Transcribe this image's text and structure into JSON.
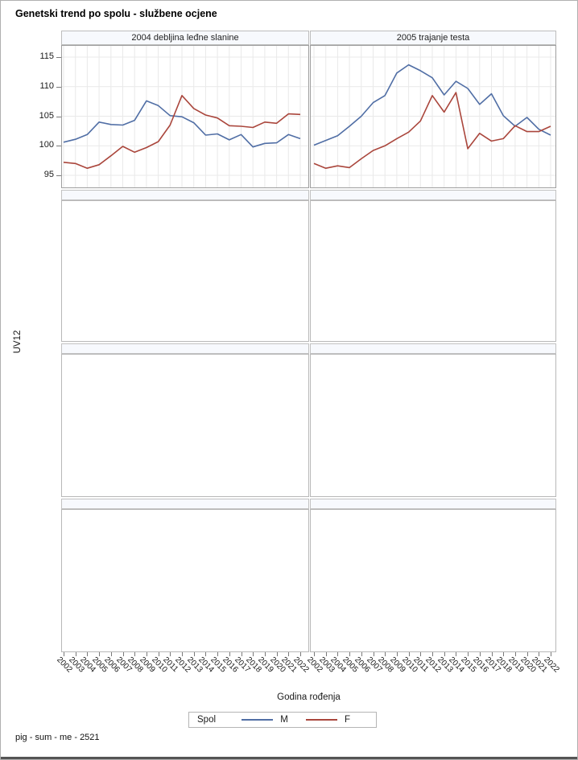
{
  "footnote": "pig - sum - me - 2521",
  "chart_data": {
    "type": "line",
    "title": "Genetski trend po spolu - službene ocjene",
    "xlabel": "Godina rođenja",
    "ylabel": "UV12",
    "x": [
      2002,
      2003,
      2004,
      2005,
      2006,
      2007,
      2008,
      2009,
      2010,
      2011,
      2012,
      2013,
      2014,
      2015,
      2016,
      2017,
      2018,
      2019,
      2020,
      2021,
      2022
    ],
    "yticks": [
      95,
      100,
      105,
      110,
      115
    ],
    "ylim": [
      93.0,
      116.9
    ],
    "grid": true,
    "legend_position": "bottom",
    "legend": {
      "title": "Spol",
      "entries": [
        {
          "label": "M",
          "color": "#506ea5"
        },
        {
          "label": "F",
          "color": "#aa463c"
        }
      ]
    },
    "panels": [
      {
        "header": "2004 debljina leđne slanine",
        "series": [
          {
            "name": "M",
            "values": [
              100.6,
              101.1,
              101.9,
              104.0,
              103.6,
              103.5,
              104.3,
              107.6,
              106.8,
              105.1,
              104.9,
              103.9,
              101.8,
              102.0,
              101.0,
              101.9,
              99.8,
              100.4,
              100.5,
              101.9,
              101.2
            ]
          },
          {
            "name": "F",
            "values": [
              97.2,
              97.0,
              96.2,
              96.8,
              98.3,
              99.9,
              98.9,
              99.7,
              100.7,
              103.5,
              108.5,
              106.3,
              105.2,
              104.7,
              103.4,
              103.3,
              103.1,
              104.0,
              103.8,
              105.4,
              105.3
            ]
          }
        ]
      },
      {
        "header": "2005 trajanje testa",
        "series": [
          {
            "name": "M",
            "values": [
              100.1,
              100.9,
              101.7,
              103.3,
              105.0,
              107.3,
              108.5,
              112.3,
              113.7,
              112.7,
              111.5,
              108.6,
              110.9,
              109.7,
              107.0,
              108.8,
              105.1,
              103.3,
              104.8,
              102.8,
              101.8
            ]
          },
          {
            "name": "F",
            "values": [
              97.0,
              96.2,
              96.6,
              96.3,
              97.8,
              99.2,
              100.0,
              101.2,
              102.3,
              104.2,
              108.5,
              105.7,
              109.0,
              99.5,
              102.1,
              100.8,
              101.2,
              103.4,
              102.4,
              102.4,
              103.3
            ]
          }
        ]
      }
    ],
    "empty_panel_rows": 3
  }
}
